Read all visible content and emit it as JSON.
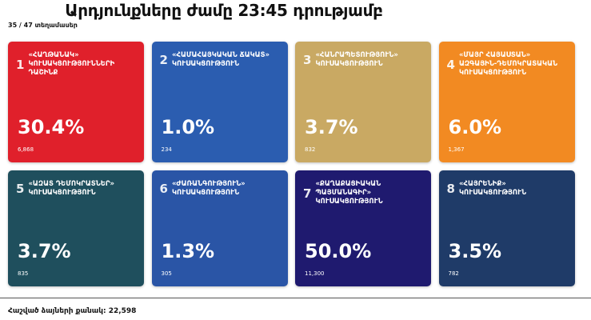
{
  "header": {
    "title": "Արդյունքները ժամը 23:45 դրությամբ",
    "precincts": "35 / 47 տեղամասեր"
  },
  "parties": [
    {
      "number": "1",
      "name": "«ՀԱՂԹԱՆԱԿ» ԿՈՒՍԱԿՑՈՒԹՅՈՒՆՆԵՐԻ ԴԱՇԻՆՔ",
      "percent": "30.4%",
      "votes": "6,868",
      "color": "#e0202b"
    },
    {
      "number": "2",
      "name": "«ՀԱՄԱՀԱՅԿԱԿԱՆ ՃԱԿԱՏ» ԿՈՒՍԱԿՑՈՒԹՅՈՒՆ",
      "percent": "1.0%",
      "votes": "234",
      "color": "#2b5db0"
    },
    {
      "number": "3",
      "name": "«ՀԱՆՐԱՊԵՏՈՒԹՅՈՒՆ» ԿՈՒՍԱԿՑՈՒԹՅՈՒՆ",
      "percent": "3.7%",
      "votes": "832",
      "color": "#c9a963"
    },
    {
      "number": "4",
      "name": "«ՄԱՅՐ ՀԱՅԱՍՏԱՆ» ԱԶԳԱՅԻՆ-ԴԵՄՈԿՐԱՏԱԿԱՆ ԿՈՒՍԱԿՑՈՒԹՅՈՒՆ",
      "percent": "6.0%",
      "votes": "1,367",
      "color": "#f28a22"
    },
    {
      "number": "5",
      "name": "«ԱԶԱՏ ԴԵՄՈԿՐԱՏՆԵՐ» ԿՈՒՍԱԿՑՈՒԹՅՈՒՆ",
      "percent": "3.7%",
      "votes": "835",
      "color": "#1f4f5d"
    },
    {
      "number": "6",
      "name": "«ԺԱՌԱՆԳՈՒԹՅՈՒՆ» ԿՈՒՍԱԿՑՈՒԹՅՈՒՆ",
      "percent": "1.3%",
      "votes": "305",
      "color": "#2a55a6"
    },
    {
      "number": "7",
      "name": "«ՔԱՂԱՔԱՑԻԱԿԱՆ ՊԱՅՄԱՆԱԳԻՐ» ԿՈՒՍԱԿՑՈՒԹՅՈՒՆ",
      "percent": "50.0%",
      "votes": "11,300",
      "color": "#1f1a6f"
    },
    {
      "number": "8",
      "name": "«ՀԱՅՐԵՆԻՔ» ԿՈՒՍԱԿՑՈՒԹՅՈՒՆ",
      "percent": "3.5%",
      "votes": "782",
      "color": "#1f3b68"
    }
  ],
  "footer": {
    "total_votes": "Հաշված ձայների քանակ: 22,598"
  }
}
